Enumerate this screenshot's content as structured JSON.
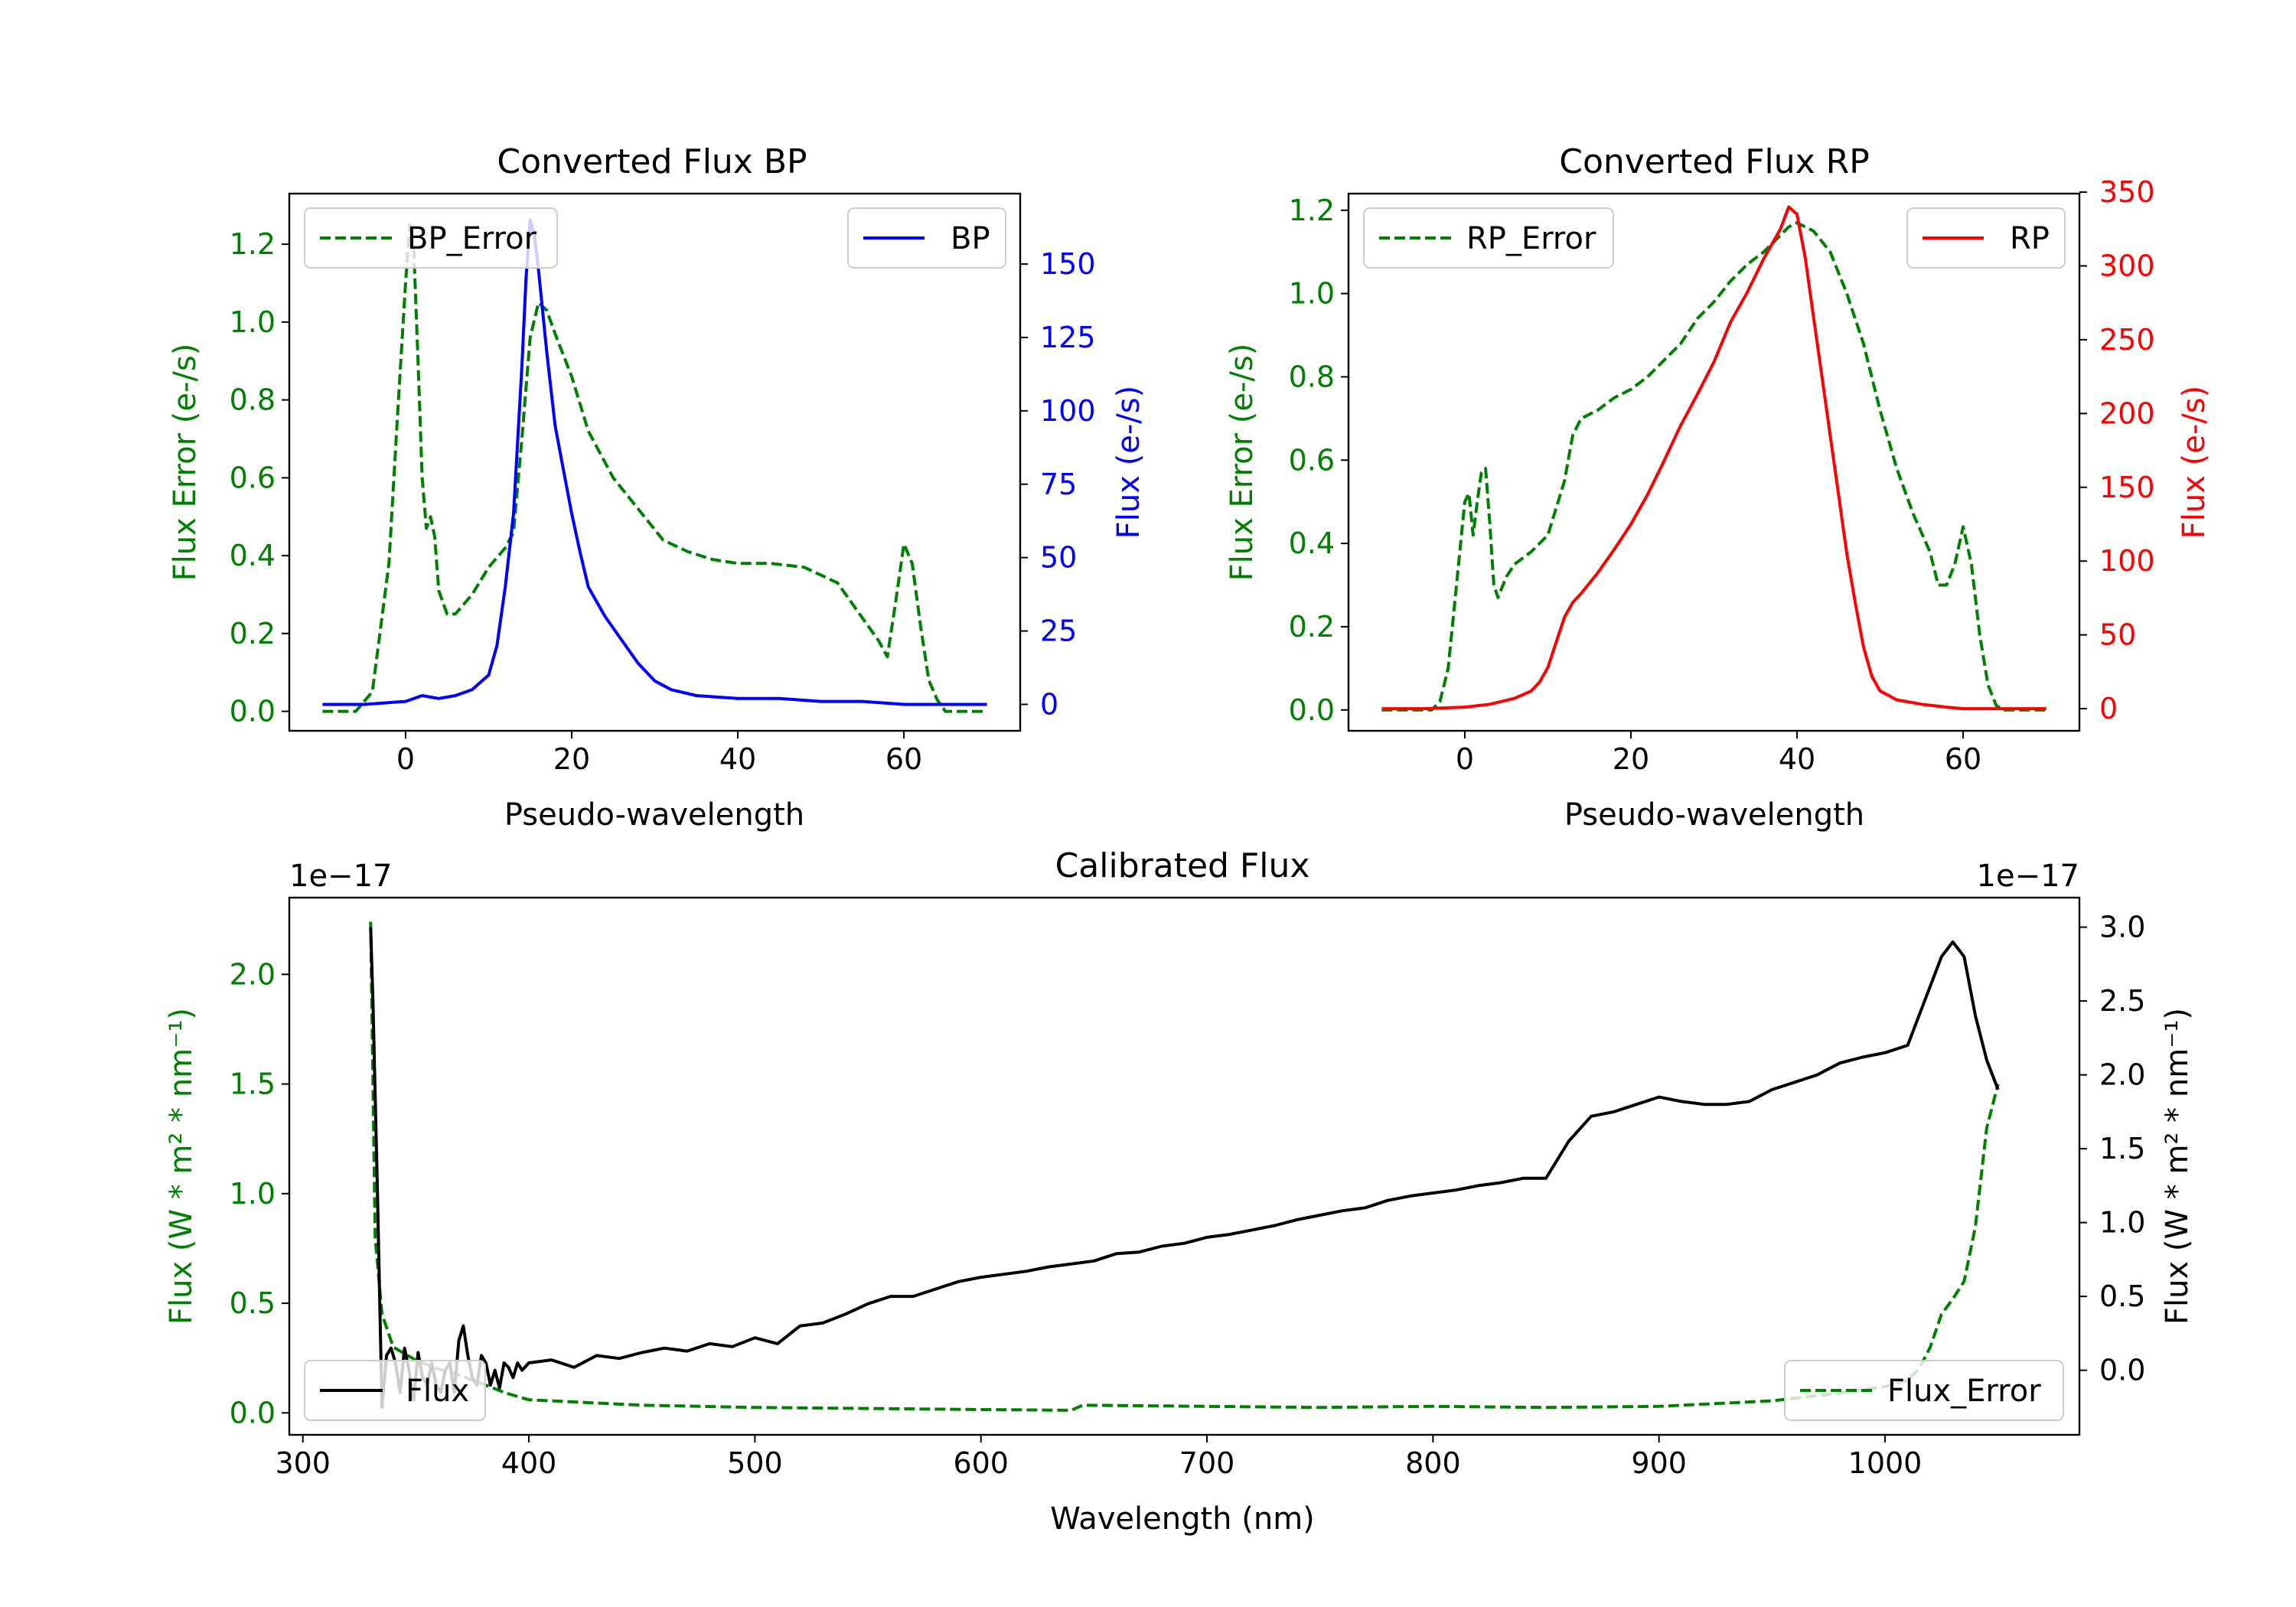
{
  "colors": {
    "error": "#008000",
    "bp": "#0000ff",
    "rp": "#ff0000",
    "flux": "#000000"
  },
  "chart_data": [
    {
      "id": "bp",
      "type": "line",
      "title": "Converted Flux BP",
      "xlabel": "Pseudo-wavelength",
      "ylabel_left": "Flux Error (e-/s)",
      "ylabel_right": "Flux (e-/s)",
      "xlim": [
        -14,
        74
      ],
      "ylim_left": [
        -0.05,
        1.33
      ],
      "ylim_right": [
        -9,
        174
      ],
      "xticks": [
        0,
        20,
        40,
        60
      ],
      "yticks_left": [
        0.0,
        0.2,
        0.4,
        0.6,
        0.8,
        1.0,
        1.2
      ],
      "yticks_right": [
        0,
        25,
        50,
        75,
        100,
        125,
        150
      ],
      "legend_left": {
        "label": "BP_Error",
        "placement": "upper left"
      },
      "legend_right": {
        "label": "BP",
        "placement": "upper right"
      },
      "series": [
        {
          "name": "BP_Error",
          "axis": "left",
          "style": "dashed",
          "color_key": "error",
          "x": [
            -10,
            -6,
            -4,
            -2,
            -1,
            0,
            0.5,
            1,
            1.5,
            2,
            2.5,
            3,
            3.5,
            4,
            5,
            6,
            8,
            10,
            12,
            13,
            14,
            15,
            16,
            17,
            18,
            20,
            22,
            25,
            28,
            31,
            34,
            37,
            40,
            44,
            48,
            52,
            55,
            57,
            58,
            59,
            60,
            61,
            62,
            63,
            64,
            65,
            70
          ],
          "y": [
            0.0,
            0.0,
            0.05,
            0.38,
            0.75,
            1.1,
            1.25,
            1.18,
            0.9,
            0.6,
            0.47,
            0.5,
            0.45,
            0.31,
            0.25,
            0.25,
            0.3,
            0.37,
            0.42,
            0.46,
            0.7,
            0.96,
            1.05,
            1.03,
            0.97,
            0.86,
            0.72,
            0.6,
            0.52,
            0.44,
            0.41,
            0.39,
            0.38,
            0.38,
            0.37,
            0.33,
            0.24,
            0.18,
            0.14,
            0.28,
            0.43,
            0.38,
            0.22,
            0.08,
            0.03,
            0.0,
            0.0
          ]
        },
        {
          "name": "BP",
          "axis": "right",
          "style": "solid",
          "color_key": "bp",
          "x": [
            -10,
            -5,
            0,
            2,
            4,
            6,
            8,
            10,
            11,
            12,
            13,
            14,
            14.5,
            15,
            15.5,
            16,
            17,
            18,
            19,
            20,
            21,
            22,
            24,
            26,
            28,
            30,
            32,
            35,
            40,
            45,
            50,
            55,
            60,
            65,
            70
          ],
          "y": [
            0,
            0,
            1,
            3,
            2,
            3,
            5,
            10,
            20,
            40,
            65,
            115,
            145,
            165,
            160,
            148,
            120,
            95,
            80,
            65,
            52,
            40,
            30,
            22,
            14,
            8,
            5,
            3,
            2,
            2,
            1,
            1,
            0,
            0,
            0
          ]
        }
      ]
    },
    {
      "id": "rp",
      "type": "line",
      "title": "Converted Flux RP",
      "xlabel": "Pseudo-wavelength",
      "ylabel_left": "Flux Error (e-/s)",
      "ylabel_right": "Flux (e-/s)",
      "xlim": [
        -14,
        74
      ],
      "ylim_left": [
        -0.05,
        1.24
      ],
      "ylim_right": [
        -15,
        349
      ],
      "xticks": [
        0,
        20,
        40,
        60
      ],
      "yticks_left": [
        0.0,
        0.2,
        0.4,
        0.6,
        0.8,
        1.0,
        1.2
      ],
      "yticks_right": [
        0,
        50,
        100,
        150,
        200,
        250,
        300,
        350
      ],
      "legend_left": {
        "label": "RP_Error",
        "placement": "upper left"
      },
      "legend_right": {
        "label": "RP",
        "placement": "upper right"
      },
      "series": [
        {
          "name": "RP_Error",
          "axis": "left",
          "style": "dashed",
          "color_key": "error",
          "x": [
            -10,
            -4,
            -3,
            -2,
            -1,
            0,
            0.5,
            1,
            1.5,
            2,
            2.5,
            3,
            3.5,
            4,
            5,
            6,
            8,
            10,
            12,
            13,
            14,
            16,
            18,
            20,
            22,
            24,
            26,
            28,
            30,
            32,
            34,
            36,
            38,
            39,
            40,
            42,
            44,
            46,
            48,
            50,
            52,
            54,
            56,
            57,
            58,
            59,
            60,
            61,
            62,
            63,
            64,
            65,
            70
          ],
          "y": [
            0.0,
            0.0,
            0.02,
            0.1,
            0.3,
            0.5,
            0.52,
            0.42,
            0.5,
            0.57,
            0.58,
            0.45,
            0.3,
            0.27,
            0.32,
            0.35,
            0.38,
            0.42,
            0.55,
            0.66,
            0.7,
            0.72,
            0.75,
            0.77,
            0.8,
            0.84,
            0.88,
            0.94,
            0.98,
            1.03,
            1.07,
            1.1,
            1.14,
            1.16,
            1.17,
            1.15,
            1.1,
            1.0,
            0.88,
            0.72,
            0.58,
            0.47,
            0.38,
            0.3,
            0.3,
            0.35,
            0.44,
            0.35,
            0.18,
            0.06,
            0.01,
            0.0,
            0.0
          ]
        },
        {
          "name": "RP",
          "axis": "right",
          "style": "solid",
          "color_key": "rp",
          "x": [
            -10,
            -5,
            0,
            3,
            6,
            8,
            9,
            10,
            11,
            12,
            13,
            14,
            16,
            18,
            20,
            22,
            24,
            25,
            26,
            28,
            30,
            32,
            34,
            36,
            38,
            39,
            40,
            41,
            42,
            43,
            44,
            45,
            46,
            47,
            48,
            49,
            50,
            52,
            55,
            58,
            60,
            65,
            70
          ],
          "y": [
            0,
            0,
            1,
            3,
            7,
            12,
            18,
            28,
            45,
            62,
            72,
            78,
            92,
            108,
            125,
            145,
            168,
            180,
            192,
            213,
            235,
            262,
            282,
            305,
            325,
            340,
            335,
            305,
            265,
            225,
            185,
            145,
            105,
            72,
            42,
            22,
            12,
            6,
            3,
            1,
            0,
            0,
            0
          ]
        }
      ]
    },
    {
      "id": "calibrated",
      "type": "line",
      "title": "Calibrated Flux",
      "xlabel": "Wavelength (nm)",
      "ylabel_left": "Flux (W * m² * nm⁻¹)",
      "ylabel_right": "Flux (W * m² * nm⁻¹)",
      "offset_left": "1e−17",
      "offset_right": "1e−17",
      "xlim": [
        294,
        1086
      ],
      "ylim_left": [
        -0.1,
        2.35
      ],
      "ylim_right": [
        -0.437,
        3.2
      ],
      "xticks": [
        300,
        400,
        500,
        600,
        700,
        800,
        900,
        1000
      ],
      "yticks_left": [
        0.0,
        0.5,
        1.0,
        1.5,
        2.0
      ],
      "yticks_right": [
        0.0,
        0.5,
        1.0,
        1.5,
        2.0,
        2.5,
        3.0
      ],
      "legend_left": {
        "label": "Flux",
        "placement": "lower left"
      },
      "legend_right": {
        "label": "Flux_Error",
        "placement": "lower right"
      },
      "series": [
        {
          "name": "Flux_Error",
          "axis": "left",
          "style": "dashed",
          "color_key": "error",
          "x": [
            330,
            332,
            335,
            340,
            350,
            360,
            370,
            380,
            390,
            400,
            420,
            450,
            500,
            550,
            600,
            640,
            645,
            700,
            750,
            800,
            850,
            900,
            950,
            980,
            1000,
            1010,
            1015,
            1020,
            1025,
            1030,
            1035,
            1040,
            1045,
            1050
          ],
          "y": [
            2.24,
            0.8,
            0.45,
            0.3,
            0.24,
            0.2,
            0.17,
            0.13,
            0.09,
            0.06,
            0.05,
            0.035,
            0.025,
            0.02,
            0.015,
            0.012,
            0.035,
            0.03,
            0.025,
            0.03,
            0.025,
            0.03,
            0.055,
            0.09,
            0.12,
            0.15,
            0.2,
            0.3,
            0.45,
            0.52,
            0.6,
            0.85,
            1.3,
            1.5
          ]
        },
        {
          "name": "Flux",
          "axis": "right",
          "style": "solid",
          "color_key": "flux",
          "x": [
            330,
            331,
            333,
            335,
            337,
            339,
            341,
            343,
            345,
            347,
            349,
            351,
            353,
            355,
            357,
            359,
            361,
            363,
            365,
            367,
            369,
            371,
            373,
            375,
            377,
            379,
            381,
            383,
            385,
            387,
            389,
            391,
            393,
            395,
            397,
            400,
            410,
            420,
            430,
            440,
            450,
            460,
            470,
            480,
            490,
            500,
            510,
            520,
            530,
            540,
            550,
            560,
            570,
            580,
            590,
            600,
            610,
            620,
            630,
            640,
            650,
            660,
            670,
            680,
            690,
            700,
            710,
            720,
            730,
            740,
            750,
            760,
            770,
            780,
            790,
            800,
            810,
            820,
            830,
            840,
            850,
            860,
            870,
            880,
            890,
            900,
            910,
            920,
            930,
            940,
            950,
            960,
            970,
            980,
            990,
            1000,
            1010,
            1015,
            1020,
            1025,
            1030,
            1035,
            1040,
            1045,
            1050
          ],
          "y": [
            3.0,
            2.5,
            1.2,
            -0.25,
            0.1,
            0.15,
            0.05,
            -0.15,
            0.15,
            0.0,
            -0.2,
            0.12,
            -0.05,
            -0.1,
            0.05,
            -0.1,
            -0.15,
            0.0,
            0.05,
            -0.15,
            0.2,
            0.3,
            0.1,
            -0.05,
            -0.1,
            0.1,
            0.05,
            -0.1,
            0.0,
            -0.12,
            0.05,
            0.02,
            -0.05,
            0.05,
            0.0,
            0.05,
            0.07,
            0.02,
            0.1,
            0.08,
            0.12,
            0.15,
            0.13,
            0.18,
            0.16,
            0.22,
            0.18,
            0.3,
            0.32,
            0.38,
            0.45,
            0.5,
            0.5,
            0.55,
            0.6,
            0.63,
            0.65,
            0.67,
            0.7,
            0.72,
            0.74,
            0.79,
            0.8,
            0.84,
            0.86,
            0.9,
            0.92,
            0.95,
            0.98,
            1.02,
            1.05,
            1.08,
            1.1,
            1.15,
            1.18,
            1.2,
            1.22,
            1.25,
            1.27,
            1.3,
            1.3,
            1.55,
            1.72,
            1.75,
            1.8,
            1.85,
            1.82,
            1.8,
            1.8,
            1.82,
            1.9,
            1.95,
            2.0,
            2.08,
            2.12,
            2.15,
            2.2,
            2.4,
            2.6,
            2.8,
            2.9,
            2.8,
            2.4,
            2.1,
            1.9
          ]
        }
      ]
    }
  ]
}
